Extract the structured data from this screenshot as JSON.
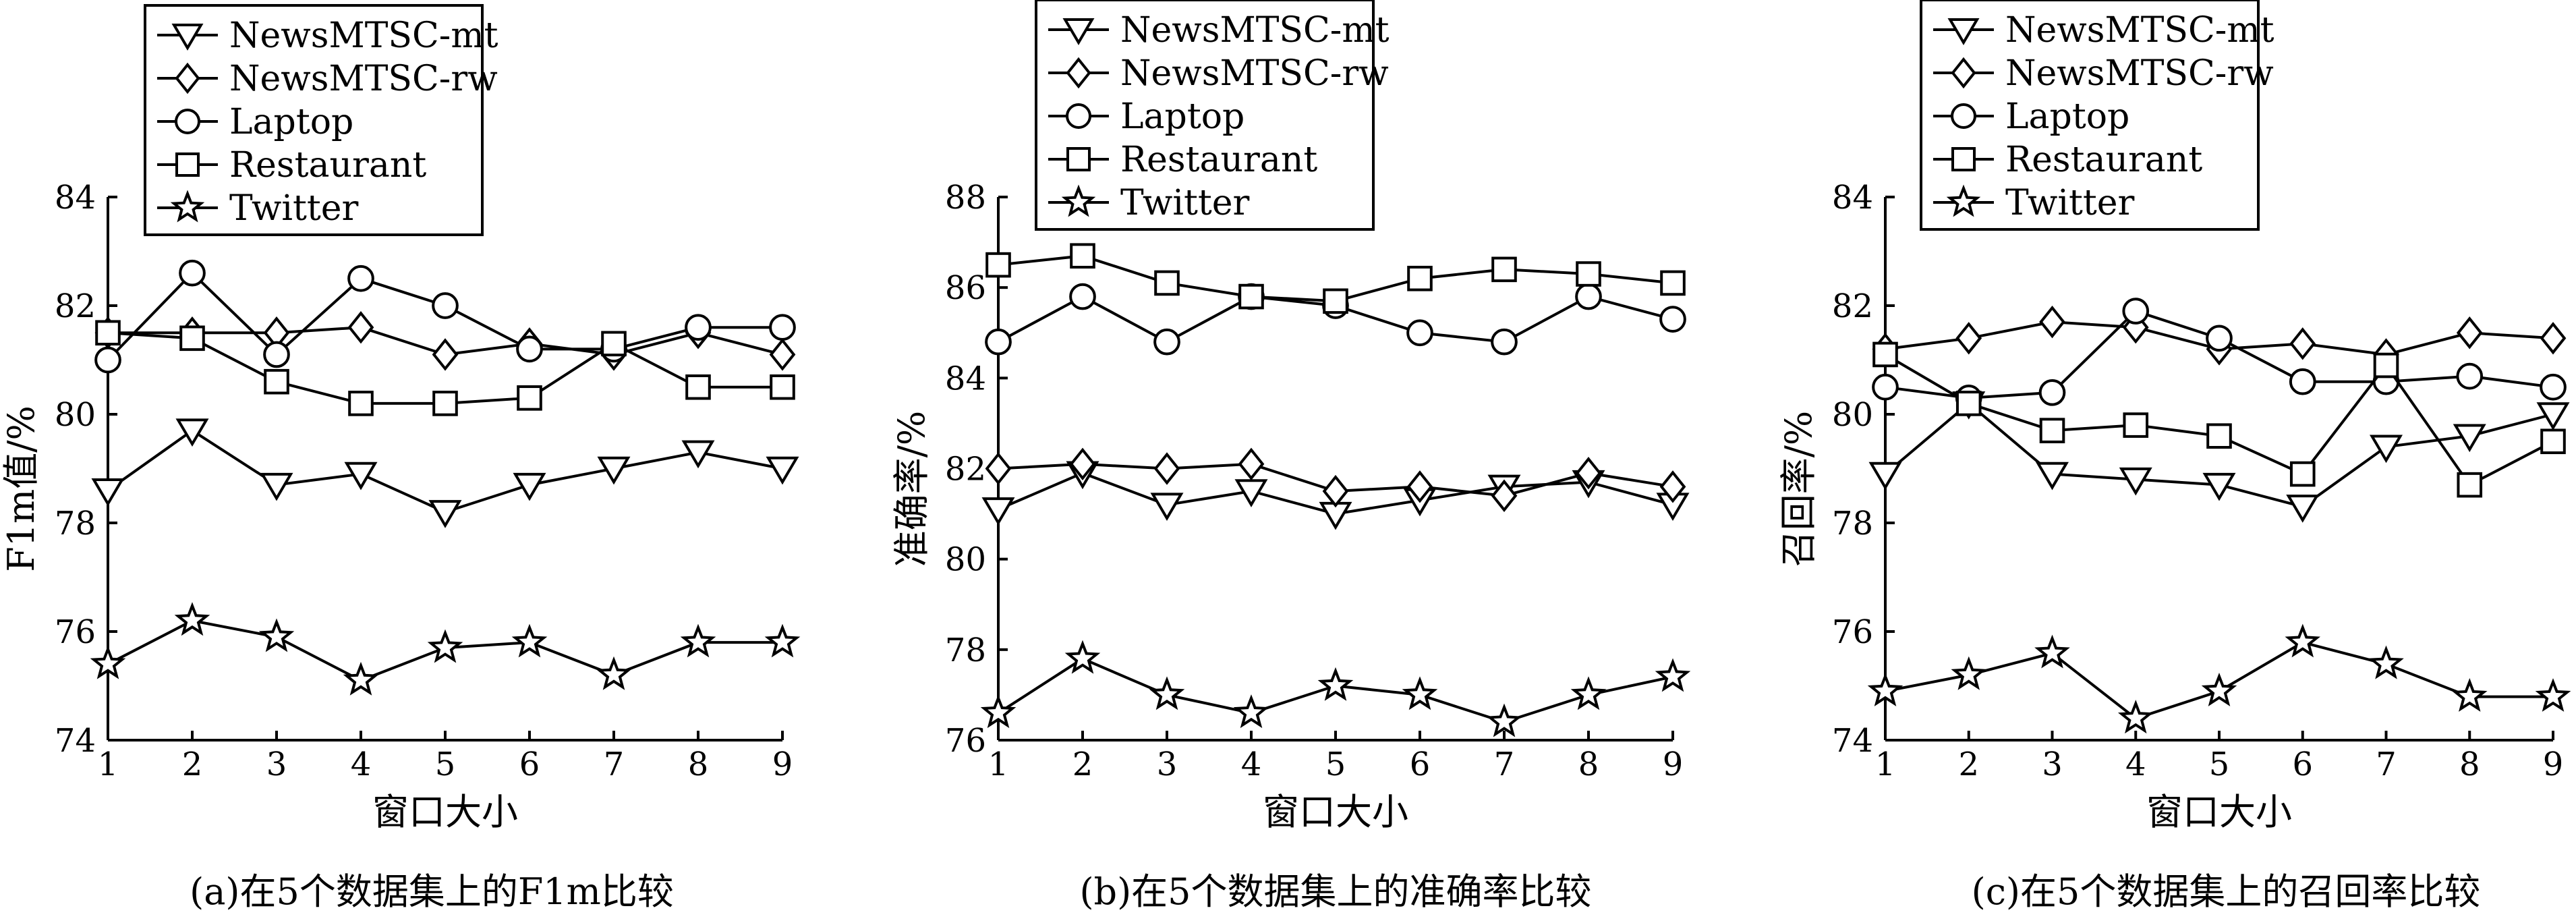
{
  "chart_data": [
    {
      "type": "line",
      "caption": "(a)在5个数据集上的F1m比较",
      "ylabel": "F1m值/%",
      "xlabel": "窗口大小",
      "x": [
        1,
        2,
        3,
        4,
        5,
        6,
        7,
        8,
        9
      ],
      "xticks": [
        "1",
        "2",
        "3",
        "4",
        "5",
        "6",
        "7",
        "8",
        "9"
      ],
      "yticks": [
        "74",
        "76",
        "78",
        "80",
        "82",
        "84"
      ],
      "ylim": [
        74,
        84
      ],
      "legend_position": "top-left",
      "series": [
        {
          "name": "NewsMTSC-mt",
          "marker": "triangle-down",
          "values": [
            78.6,
            79.7,
            78.7,
            78.9,
            78.2,
            78.7,
            79.0,
            79.3,
            79.0
          ]
        },
        {
          "name": "NewsMTSC-rw",
          "marker": "diamond",
          "values": [
            81.5,
            81.5,
            81.5,
            81.6,
            81.1,
            81.3,
            81.1,
            81.5,
            81.1
          ]
        },
        {
          "name": "Laptop",
          "marker": "circle",
          "values": [
            81.0,
            82.6,
            81.1,
            82.5,
            82.0,
            81.2,
            81.2,
            81.6,
            81.6
          ]
        },
        {
          "name": "Restaurant",
          "marker": "square",
          "values": [
            81.5,
            81.4,
            80.6,
            80.2,
            80.2,
            80.3,
            81.3,
            80.5,
            80.5
          ]
        },
        {
          "name": "Twitter",
          "marker": "star",
          "values": [
            75.4,
            76.2,
            75.9,
            75.1,
            75.7,
            75.8,
            75.2,
            75.8,
            75.8
          ]
        }
      ]
    },
    {
      "type": "line",
      "caption": "(b)在5个数据集上的准确率比较",
      "ylabel": "准确率/%",
      "xlabel": "窗口大小",
      "x": [
        1,
        2,
        3,
        4,
        5,
        6,
        7,
        8,
        9
      ],
      "xticks": [
        "1",
        "2",
        "3",
        "4",
        "5",
        "6",
        "7",
        "8",
        "9"
      ],
      "yticks": [
        "76",
        "78",
        "80",
        "82",
        "84",
        "86",
        "88"
      ],
      "ylim": [
        76,
        88
      ],
      "legend_position": "top-left",
      "series": [
        {
          "name": "NewsMTSC-mt",
          "marker": "triangle-down",
          "values": [
            81.1,
            81.9,
            81.2,
            81.5,
            81.0,
            81.3,
            81.6,
            81.7,
            81.2
          ]
        },
        {
          "name": "NewsMTSC-rw",
          "marker": "diamond",
          "values": [
            82.0,
            82.1,
            82.0,
            82.1,
            81.5,
            81.6,
            81.4,
            81.9,
            81.6
          ]
        },
        {
          "name": "Laptop",
          "marker": "circle",
          "values": [
            84.8,
            85.8,
            84.8,
            85.8,
            85.6,
            85.0,
            84.8,
            85.8,
            85.3
          ]
        },
        {
          "name": "Restaurant",
          "marker": "square",
          "values": [
            86.5,
            86.7,
            86.1,
            85.8,
            85.7,
            86.2,
            86.4,
            86.3,
            86.1
          ]
        },
        {
          "name": "Twitter",
          "marker": "star",
          "values": [
            76.6,
            77.8,
            77.0,
            76.6,
            77.2,
            77.0,
            76.4,
            77.0,
            77.4
          ]
        }
      ]
    },
    {
      "type": "line",
      "caption": "(c)在5个数据集上的召回率比较",
      "ylabel": "召回率/%",
      "xlabel": "窗口大小",
      "x": [
        1,
        2,
        3,
        4,
        5,
        6,
        7,
        8,
        9
      ],
      "xticks": [
        "1",
        "2",
        "3",
        "4",
        "5",
        "6",
        "7",
        "8",
        "9"
      ],
      "yticks": [
        "74",
        "76",
        "78",
        "80",
        "82",
        "84"
      ],
      "ylim": [
        74,
        84
      ],
      "legend_position": "top-left",
      "series": [
        {
          "name": "NewsMTSC-mt",
          "marker": "triangle-down",
          "values": [
            78.9,
            80.2,
            78.9,
            78.8,
            78.7,
            78.3,
            79.4,
            79.6,
            80.0
          ]
        },
        {
          "name": "NewsMTSC-rw",
          "marker": "diamond",
          "values": [
            81.2,
            81.4,
            81.7,
            81.6,
            81.2,
            81.3,
            81.1,
            81.5,
            81.4
          ]
        },
        {
          "name": "Laptop",
          "marker": "circle",
          "values": [
            80.5,
            80.3,
            80.4,
            81.9,
            81.4,
            80.6,
            80.6,
            80.7,
            80.5
          ]
        },
        {
          "name": "Restaurant",
          "marker": "square",
          "values": [
            81.1,
            80.2,
            79.7,
            79.8,
            79.6,
            78.9,
            80.9,
            78.7,
            79.5
          ]
        },
        {
          "name": "Twitter",
          "marker": "star",
          "values": [
            74.9,
            75.2,
            75.6,
            74.4,
            74.9,
            75.8,
            75.4,
            74.8,
            74.8
          ]
        }
      ]
    }
  ]
}
